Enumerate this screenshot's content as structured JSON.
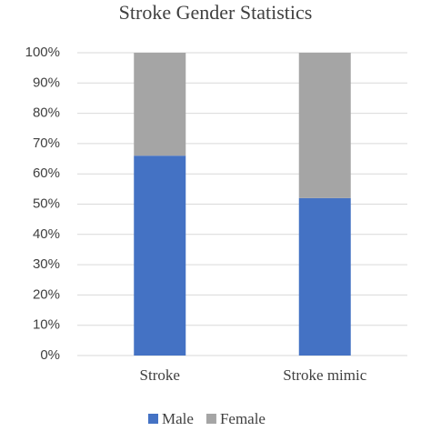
{
  "chart_data": {
    "type": "stacked_bar",
    "title": "Stroke Gender Statistics",
    "categories": [
      "Stroke",
      "Stroke mimic"
    ],
    "series": [
      {
        "name": "Male",
        "color": "#4472c4",
        "values": [
          66,
          52
        ]
      },
      {
        "name": "Female",
        "color": "#a5a5a5",
        "values": [
          34,
          48
        ]
      }
    ],
    "ylim": [
      0,
      100
    ],
    "yticks": [
      {
        "value": 0,
        "label": "0%"
      },
      {
        "value": 10,
        "label": "10%"
      },
      {
        "value": 20,
        "label": "20%"
      },
      {
        "value": 30,
        "label": "30%"
      },
      {
        "value": 40,
        "label": "40%"
      },
      {
        "value": 50,
        "label": "50%"
      },
      {
        "value": 60,
        "label": "60%"
      },
      {
        "value": 70,
        "label": "70%"
      },
      {
        "value": 80,
        "label": "80%"
      },
      {
        "value": 90,
        "label": "90%"
      },
      {
        "value": 100,
        "label": "100%"
      }
    ],
    "grid": true,
    "legend": "bottom"
  }
}
